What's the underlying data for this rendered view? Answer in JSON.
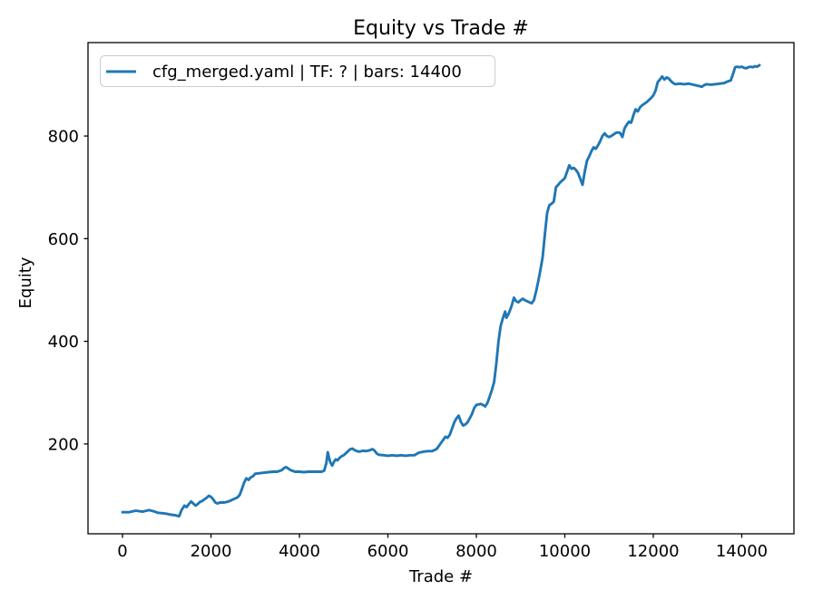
{
  "figure": {
    "title": "Equity vs Trade #",
    "xlabel": "Trade #",
    "ylabel": "Equity",
    "legend": {
      "label": "cfg_merged.yaml | TF: ? | bars: 14400",
      "position": "upper left",
      "border_color": "#cccccc",
      "background": "#ffffff"
    },
    "colors": {
      "line": "#1f77b4",
      "spine": "#000000",
      "text": "#000000",
      "background": "#ffffff"
    }
  },
  "chart_data": {
    "type": "line",
    "title": "Equity vs Trade #",
    "xlabel": "Trade #",
    "ylabel": "Equity",
    "xlim": [
      -780,
      15180
    ],
    "ylim": [
      25,
      982
    ],
    "xticks": [
      0,
      2000,
      4000,
      6000,
      8000,
      10000,
      12000,
      14000
    ],
    "yticks": [
      200,
      400,
      600,
      800
    ],
    "grid": false,
    "legend_position": "upper left",
    "series": [
      {
        "name": "cfg_merged.yaml | TF: ? | bars: 14400",
        "color": "#1f77b4",
        "x": [
          0,
          150,
          300,
          450,
          600,
          700,
          800,
          900,
          1000,
          1100,
          1200,
          1280,
          1340,
          1400,
          1450,
          1500,
          1550,
          1600,
          1650,
          1700,
          1750,
          1800,
          1850,
          1900,
          1950,
          2000,
          2050,
          2100,
          2150,
          2200,
          2300,
          2400,
          2500,
          2600,
          2650,
          2700,
          2750,
          2800,
          2850,
          2900,
          2950,
          3000,
          3100,
          3200,
          3300,
          3400,
          3500,
          3600,
          3650,
          3700,
          3750,
          3800,
          3900,
          4000,
          4100,
          4200,
          4300,
          4400,
          4500,
          4560,
          4610,
          4640,
          4670,
          4700,
          4740,
          4780,
          4820,
          4860,
          4900,
          4950,
          5000,
          5050,
          5100,
          5150,
          5200,
          5250,
          5300,
          5350,
          5400,
          5450,
          5500,
          5550,
          5600,
          5650,
          5700,
          5750,
          5800,
          5900,
          6000,
          6100,
          6200,
          6300,
          6400,
          6500,
          6600,
          6700,
          6800,
          6900,
          7000,
          7100,
          7150,
          7200,
          7250,
          7300,
          7350,
          7400,
          7450,
          7500,
          7550,
          7600,
          7650,
          7700,
          7750,
          7800,
          7850,
          7900,
          7950,
          8000,
          8050,
          8100,
          8150,
          8200,
          8250,
          8300,
          8350,
          8400,
          8450,
          8500,
          8550,
          8600,
          8650,
          8680,
          8720,
          8760,
          8800,
          8850,
          8900,
          8950,
          9000,
          9050,
          9100,
          9150,
          9200,
          9250,
          9300,
          9350,
          9400,
          9450,
          9500,
          9550,
          9600,
          9650,
          9700,
          9750,
          9800,
          9850,
          9900,
          9950,
          10000,
          10050,
          10100,
          10150,
          10200,
          10250,
          10300,
          10350,
          10400,
          10450,
          10500,
          10550,
          10600,
          10650,
          10700,
          10750,
          10800,
          10850,
          10900,
          10950,
          11000,
          11050,
          11100,
          11150,
          11200,
          11250,
          11300,
          11350,
          11400,
          11450,
          11500,
          11550,
          11600,
          11650,
          11700,
          11750,
          11800,
          11850,
          11900,
          11950,
          12000,
          12050,
          12100,
          12150,
          12200,
          12250,
          12300,
          12350,
          12400,
          12450,
          12500,
          12600,
          12700,
          12800,
          12900,
          13000,
          13100,
          13150,
          13200,
          13300,
          13400,
          13500,
          13600,
          13650,
          13700,
          13750,
          13800,
          13850,
          13900,
          13950,
          14000,
          14050,
          14100,
          14150,
          14200,
          14250,
          14300,
          14350,
          14400
        ],
        "y": [
          67,
          67,
          70,
          68,
          71,
          69,
          66,
          65,
          64,
          62,
          61,
          59,
          72,
          80,
          77,
          83,
          88,
          84,
          80,
          83,
          87,
          89,
          92,
          95,
          99,
          97,
          92,
          86,
          84,
          86,
          86,
          88,
          92,
          96,
          101,
          112,
          125,
          133,
          130,
          135,
          137,
          142,
          143,
          144,
          145,
          146,
          146,
          149,
          153,
          155,
          152,
          149,
          146,
          146,
          145,
          146,
          146,
          146,
          146,
          148,
          163,
          184,
          173,
          164,
          158,
          165,
          170,
          168,
          172,
          176,
          178,
          182,
          186,
          190,
          191,
          188,
          186,
          185,
          186,
          187,
          186,
          187,
          188,
          190,
          187,
          181,
          179,
          178,
          177,
          178,
          177,
          178,
          177,
          178,
          178,
          183,
          185,
          186,
          186,
          190,
          196,
          202,
          208,
          214,
          212,
          218,
          230,
          242,
          250,
          255,
          243,
          236,
          238,
          242,
          250,
          258,
          270,
          276,
          277,
          278,
          276,
          273,
          280,
          292,
          305,
          320,
          355,
          400,
          430,
          445,
          458,
          446,
          452,
          460,
          470,
          485,
          478,
          476,
          480,
          483,
          480,
          478,
          476,
          474,
          480,
          497,
          517,
          540,
          565,
          610,
          650,
          665,
          668,
          672,
          700,
          705,
          710,
          714,
          718,
          730,
          743,
          736,
          738,
          734,
          728,
          716,
          705,
          730,
          752,
          760,
          770,
          778,
          775,
          782,
          790,
          800,
          805,
          800,
          798,
          800,
          803,
          806,
          807,
          806,
          798,
          815,
          822,
          828,
          826,
          840,
          852,
          848,
          856,
          860,
          863,
          866,
          870,
          874,
          879,
          888,
          905,
          910,
          916,
          910,
          914,
          912,
          907,
          903,
          901,
          902,
          901,
          902,
          900,
          898,
          896,
          899,
          901,
          900,
          901,
          902,
          903,
          905,
          907,
          908,
          920,
          934,
          935,
          934,
          935,
          933,
          932,
          934,
          935,
          934,
          936,
          935,
          938
        ]
      }
    ]
  }
}
